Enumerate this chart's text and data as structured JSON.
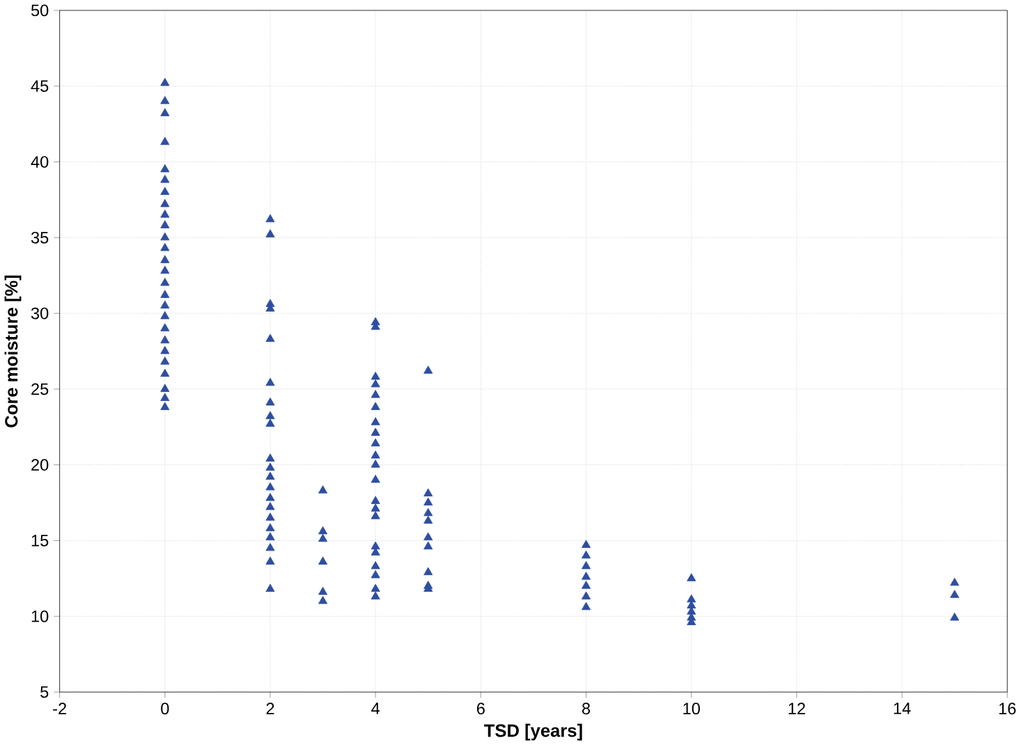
{
  "chart_data": {
    "type": "scatter",
    "xlabel": "TSD [years]",
    "ylabel": "Core moisture [%]",
    "x": [
      0,
      0,
      0,
      0,
      0,
      0,
      0,
      0,
      0,
      0,
      0,
      0,
      0,
      0,
      0,
      0,
      0,
      0,
      0,
      0,
      0,
      0,
      0,
      0,
      0,
      0,
      2,
      2,
      2,
      2,
      2,
      2,
      2,
      2,
      2,
      2,
      2,
      2,
      2,
      2,
      2,
      2,
      2,
      2,
      2,
      2,
      2,
      3,
      3,
      3,
      3,
      3,
      3,
      4,
      4,
      4,
      4,
      4,
      4,
      4,
      4,
      4,
      4,
      4,
      4,
      4,
      4,
      4,
      4,
      4,
      4,
      4,
      4,
      4,
      5,
      5,
      5,
      5,
      5,
      5,
      5,
      5,
      5,
      5,
      8,
      8,
      8,
      8,
      8,
      8,
      8,
      10,
      10,
      10,
      10,
      10,
      10,
      15,
      15,
      15
    ],
    "values": [
      45.2,
      44,
      43.2,
      41.3,
      39.5,
      38.8,
      38,
      37.2,
      36.5,
      35.8,
      35,
      34.3,
      33.5,
      32.8,
      32,
      31.2,
      30.5,
      29.8,
      29,
      28.2,
      27.5,
      26.8,
      26,
      25,
      24.4,
      23.8,
      36.2,
      35.2,
      30.6,
      30.3,
      28.3,
      25.4,
      24.1,
      23.2,
      22.7,
      20.4,
      19.8,
      19.2,
      18.5,
      17.8,
      17.2,
      16.5,
      15.8,
      15.2,
      14.5,
      13.6,
      11.8,
      18.3,
      15.6,
      15.1,
      13.6,
      11.6,
      11.0,
      29.4,
      29.1,
      25.8,
      25.3,
      24.6,
      23.8,
      22.8,
      22.1,
      21.4,
      20.6,
      20.0,
      19.0,
      17.6,
      17.1,
      16.6,
      14.6,
      14.2,
      13.3,
      12.7,
      11.8,
      11.3,
      26.2,
      18.1,
      17.5,
      16.8,
      16.3,
      15.2,
      14.6,
      12.9,
      12.0,
      11.8,
      14.7,
      14.0,
      13.3,
      12.6,
      12.0,
      11.3,
      10.6,
      12.5,
      11.1,
      10.7,
      10.3,
      9.9,
      9.6,
      12.2,
      11.4,
      9.9
    ],
    "color": "#2e4ea0",
    "marker": "triangle",
    "grid": true,
    "xlim": [
      -2,
      16
    ],
    "xticks": [
      -2,
      0,
      2,
      4,
      6,
      8,
      10,
      12,
      14,
      16
    ],
    "ylim": [
      5,
      50
    ],
    "yticks": [
      5,
      10,
      15,
      20,
      25,
      30,
      35,
      40,
      45,
      50
    ]
  }
}
